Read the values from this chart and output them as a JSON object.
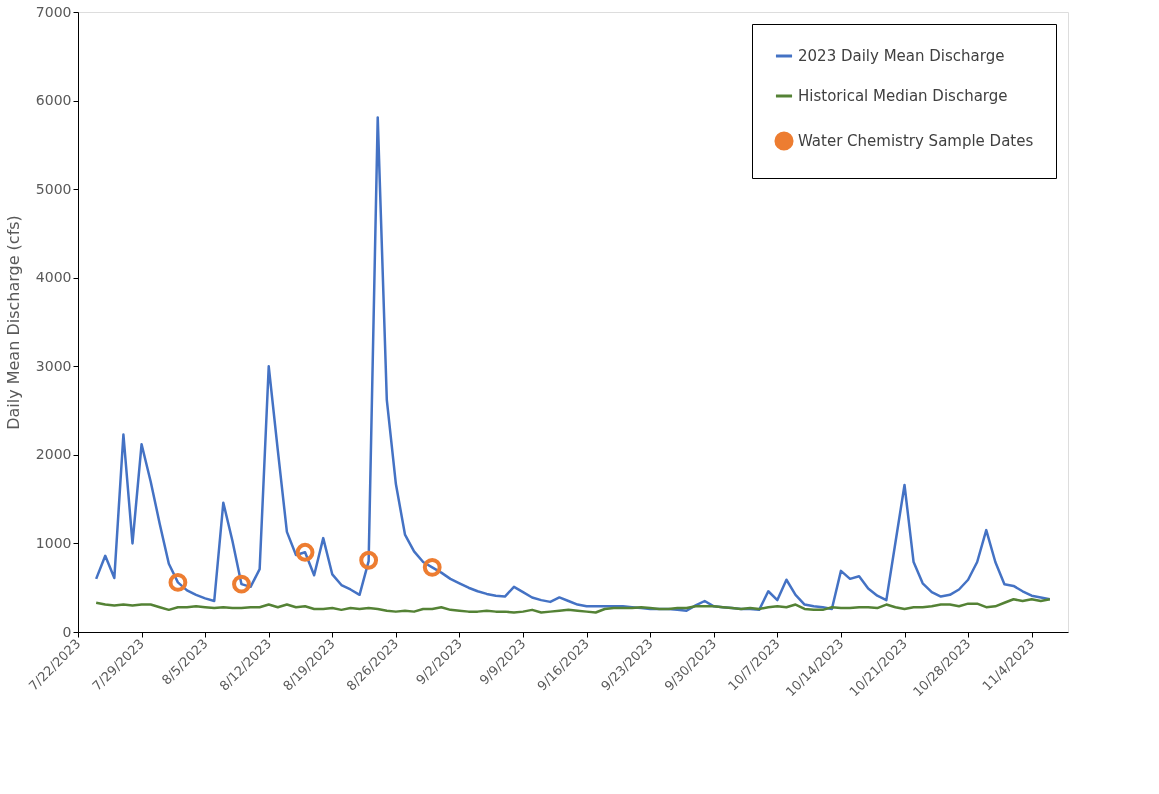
{
  "chart_data": {
    "type": "line",
    "ylabel": "Daily Mean Discharge (cfs)",
    "x": [
      "2023-07-24",
      "2023-07-25",
      "2023-07-26",
      "2023-07-27",
      "2023-07-28",
      "2023-07-29",
      "2023-07-30",
      "2023-07-31",
      "2023-08-01",
      "2023-08-02",
      "2023-08-03",
      "2023-08-04",
      "2023-08-05",
      "2023-08-06",
      "2023-08-07",
      "2023-08-08",
      "2023-08-09",
      "2023-08-10",
      "2023-08-11",
      "2023-08-12",
      "2023-08-13",
      "2023-08-14",
      "2023-08-15",
      "2023-08-16",
      "2023-08-17",
      "2023-08-18",
      "2023-08-19",
      "2023-08-20",
      "2023-08-21",
      "2023-08-22",
      "2023-08-23",
      "2023-08-24",
      "2023-08-25",
      "2023-08-26",
      "2023-08-27",
      "2023-08-28",
      "2023-08-29",
      "2023-08-30",
      "2023-08-31",
      "2023-09-01",
      "2023-09-02",
      "2023-09-03",
      "2023-09-04",
      "2023-09-05",
      "2023-09-06",
      "2023-09-07",
      "2023-09-08",
      "2023-09-09",
      "2023-09-10",
      "2023-09-11",
      "2023-09-12",
      "2023-09-13",
      "2023-09-14",
      "2023-09-15",
      "2023-09-16",
      "2023-09-17",
      "2023-09-18",
      "2023-09-19",
      "2023-09-20",
      "2023-09-21",
      "2023-09-22",
      "2023-09-23",
      "2023-09-24",
      "2023-09-25",
      "2023-09-26",
      "2023-09-27",
      "2023-09-28",
      "2023-09-29",
      "2023-09-30",
      "2023-10-01",
      "2023-10-02",
      "2023-10-03",
      "2023-10-04",
      "2023-10-05",
      "2023-10-06",
      "2023-10-07",
      "2023-10-08",
      "2023-10-09",
      "2023-10-10",
      "2023-10-11",
      "2023-10-12",
      "2023-10-13",
      "2023-10-14",
      "2023-10-15",
      "2023-10-16",
      "2023-10-17",
      "2023-10-18",
      "2023-10-19",
      "2023-10-20",
      "2023-10-21",
      "2023-10-22",
      "2023-10-23",
      "2023-10-24",
      "2023-10-25",
      "2023-10-26",
      "2023-10-27",
      "2023-10-28",
      "2023-10-29",
      "2023-10-30",
      "2023-10-31",
      "2023-11-01",
      "2023-11-02",
      "2023-11-03",
      "2023-11-04",
      "2023-11-05",
      "2023-11-06"
    ],
    "series": [
      {
        "name": "2023 Daily Mean Discharge",
        "color": "#4472c4",
        "line_style": "solid",
        "values": [
          600,
          860,
          610,
          2230,
          1000,
          2120,
          1700,
          1220,
          770,
          560,
          470,
          420,
          380,
          350,
          1460,
          1030,
          540,
          510,
          710,
          3000,
          2050,
          1130,
          870,
          900,
          640,
          1060,
          650,
          530,
          480,
          420,
          800,
          5810,
          2620,
          1670,
          1100,
          910,
          790,
          730,
          670,
          600,
          550,
          500,
          460,
          430,
          410,
          400,
          510,
          450,
          390,
          360,
          340,
          390,
          350,
          310,
          290,
          290,
          290,
          290,
          290,
          280,
          270,
          260,
          260,
          260,
          250,
          240,
          300,
          350,
          290,
          280,
          270,
          260,
          260,
          250,
          460,
          360,
          590,
          420,
          310,
          290,
          280,
          260,
          690,
          600,
          630,
          490,
          410,
          360,
          1010,
          1660,
          790,
          550,
          450,
          400,
          420,
          480,
          590,
          790,
          1150,
          790,
          540,
          520,
          460,
          410,
          390,
          370
        ]
      },
      {
        "name": "Historical Median Discharge",
        "color": "#548235",
        "line_style": "solid",
        "values": [
          330,
          310,
          300,
          310,
          300,
          310,
          310,
          280,
          250,
          280,
          280,
          290,
          280,
          270,
          280,
          270,
          270,
          280,
          280,
          310,
          280,
          310,
          280,
          290,
          260,
          260,
          270,
          250,
          270,
          260,
          270,
          260,
          240,
          230,
          240,
          230,
          260,
          260,
          280,
          250,
          240,
          230,
          230,
          240,
          230,
          230,
          220,
          230,
          250,
          220,
          230,
          240,
          250,
          240,
          230,
          220,
          260,
          270,
          270,
          270,
          280,
          270,
          260,
          260,
          270,
          270,
          290,
          290,
          290,
          280,
          270,
          260,
          270,
          260,
          280,
          290,
          280,
          310,
          260,
          250,
          250,
          280,
          270,
          270,
          280,
          280,
          270,
          310,
          280,
          260,
          280,
          280,
          290,
          310,
          310,
          290,
          320,
          320,
          280,
          290,
          330,
          370,
          350,
          370,
          350,
          370
        ]
      },
      {
        "name": "Water Chemistry Sample Dates",
        "type": "scatter",
        "marker": "circle",
        "color": "#ed7d31",
        "x": [
          "2023-08-02",
          "2023-08-09",
          "2023-08-16",
          "2023-08-23",
          "2023-08-30"
        ],
        "values": [
          560,
          540,
          900,
          810,
          730
        ]
      }
    ],
    "xlim": [
      "2023-07-22",
      "2023-11-08"
    ],
    "xticks": [
      {
        "value": "2023-07-22",
        "label": "7/22/2023"
      },
      {
        "value": "2023-07-29",
        "label": "7/29/2023"
      },
      {
        "value": "2023-08-05",
        "label": "8/5/2023"
      },
      {
        "value": "2023-08-12",
        "label": "8/12/2023"
      },
      {
        "value": "2023-08-19",
        "label": "8/19/2023"
      },
      {
        "value": "2023-08-26",
        "label": "8/26/2023"
      },
      {
        "value": "2023-09-02",
        "label": "9/2/2023"
      },
      {
        "value": "2023-09-09",
        "label": "9/9/2023"
      },
      {
        "value": "2023-09-16",
        "label": "9/16/2023"
      },
      {
        "value": "2023-09-23",
        "label": "9/23/2023"
      },
      {
        "value": "2023-09-30",
        "label": "9/30/2023"
      },
      {
        "value": "2023-10-07",
        "label": "10/7/2023"
      },
      {
        "value": "2023-10-14",
        "label": "10/14/2023"
      },
      {
        "value": "2023-10-21",
        "label": "10/21/2023"
      },
      {
        "value": "2023-10-28",
        "label": "10/28/2023"
      },
      {
        "value": "2023-11-04",
        "label": "11/4/2023"
      }
    ],
    "ylim": [
      0,
      7000
    ],
    "yticks": [
      0,
      1000,
      2000,
      3000,
      4000,
      5000,
      6000,
      7000
    ],
    "grid": false,
    "legend": "top right"
  }
}
